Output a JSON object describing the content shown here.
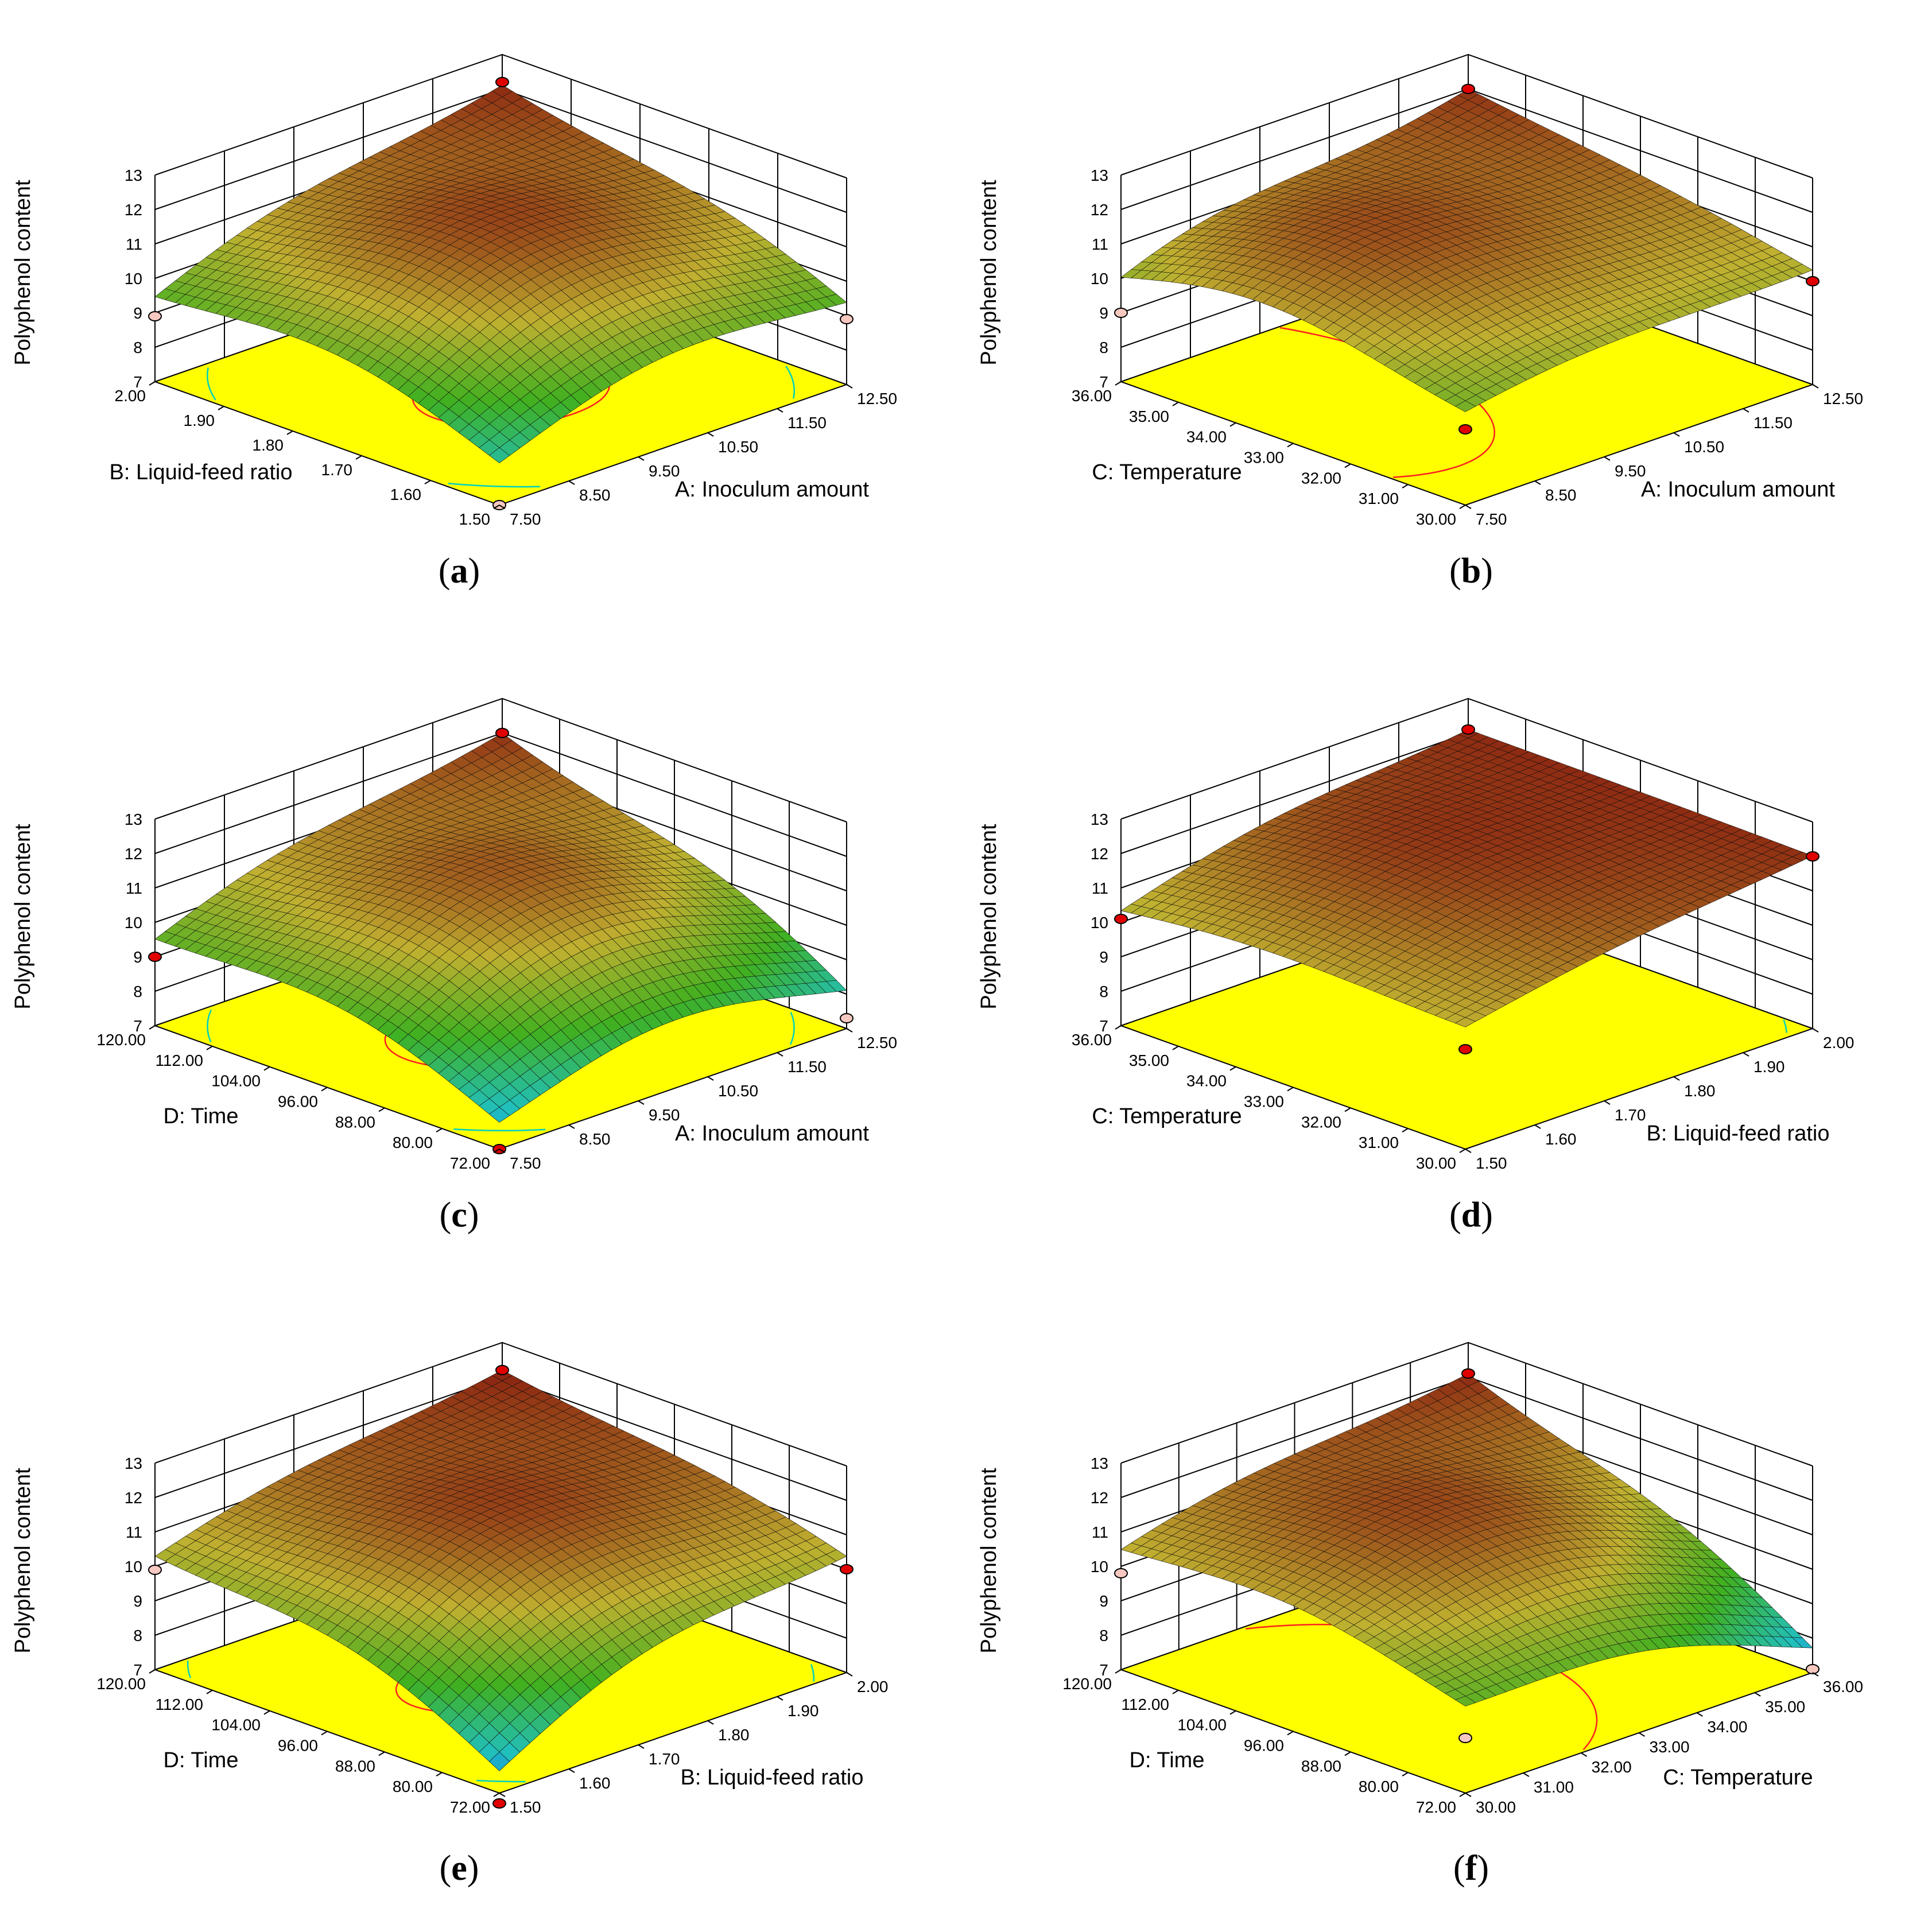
{
  "colors": {
    "floor": "#ffff00",
    "contour_inner": "#ff2020",
    "contour_outer": "#00d0c0",
    "grid": "#000000",
    "point_fill_dark": "#e00000",
    "point_fill_light": "#f6c8c0",
    "surface_low": "#0030ff",
    "surface_mid_low": "#20c0c0",
    "surface_mid": "#40b020",
    "surface_mid_high": "#c0b030",
    "surface_high": "#8a2010"
  },
  "chart_data": [
    {
      "id": "a",
      "caption": "a",
      "type": "surface3d",
      "zlabel": "Polyphenol content",
      "zticks": [
        "7",
        "8",
        "9",
        "10",
        "11",
        "12",
        "13"
      ],
      "zlim": [
        7,
        13
      ],
      "x_axis": {
        "label": "A: Inoculum amount",
        "ticks": [
          "7.50",
          "8.50",
          "9.50",
          "10.50",
          "11.50",
          "12.50"
        ],
        "range": [
          7.5,
          12.5
        ]
      },
      "y_axis": {
        "label": "B: Liquid-feed ratio",
        "ticks": [
          "1.50",
          "1.60",
          "1.70",
          "1.80",
          "1.90",
          "2.00"
        ],
        "range": [
          1.5,
          2.0
        ]
      },
      "surface": {
        "corners": {
          "x0y0": 7.4,
          "x1y0": 8.8,
          "x0y1": 8.9,
          "x1y1": 12.1
        },
        "peak": {
          "u": 0.5,
          "v": 0.5,
          "z": 12.2
        }
      },
      "contours": [
        {
          "u": 0.48,
          "v": 0.45,
          "ru": 0.22,
          "rv": 0.18,
          "kind": "inner"
        },
        {
          "u": 0.5,
          "v": 0.5,
          "ru": 0.58,
          "rv": 0.62,
          "kind": "outer"
        }
      ],
      "design_points": [
        {
          "u": 1,
          "v": 1,
          "z": 12.2,
          "fill": "dark"
        },
        {
          "u": 0,
          "v": 0,
          "z": 7.0,
          "fill": "light"
        },
        {
          "u": 1,
          "v": 0,
          "z": 8.9,
          "fill": "light"
        },
        {
          "u": 0,
          "v": 1,
          "z": 8.9,
          "fill": "light"
        }
      ]
    },
    {
      "id": "b",
      "caption": "b",
      "type": "surface3d",
      "zlabel": "Polyphenol content",
      "zticks": [
        "7",
        "8",
        "9",
        "10",
        "11",
        "12",
        "13"
      ],
      "zlim": [
        7,
        13
      ],
      "x_axis": {
        "label": "A: Inoculum amount",
        "ticks": [
          "7.50",
          "8.50",
          "9.50",
          "10.50",
          "11.50",
          "12.50"
        ],
        "range": [
          7.5,
          12.5
        ]
      },
      "y_axis": {
        "label": "C: Temperature",
        "ticks": [
          "30.00",
          "31.00",
          "32.00",
          "33.00",
          "34.00",
          "35.00",
          "36.00"
        ],
        "range": [
          30,
          36
        ]
      },
      "surface": {
        "corners": {
          "x0y0": 9.2,
          "x1y0": 10.2,
          "x0y1": 9.0,
          "x1y1": 12.0
        },
        "peak": {
          "u": 0.35,
          "v": 0.6,
          "z": 12.0
        }
      },
      "contours": [
        {
          "u": 0.15,
          "v": 0.72,
          "ru": 0.35,
          "rv": 0.55,
          "kind": "inner"
        },
        {
          "u": 0.3,
          "v": 0.6,
          "ru": 0.9,
          "rv": 0.9,
          "kind": "outer"
        }
      ],
      "design_points": [
        {
          "u": 1,
          "v": 1,
          "z": 12.0,
          "fill": "dark"
        },
        {
          "u": 0,
          "v": 0,
          "z": 9.2,
          "fill": "dark"
        },
        {
          "u": 1,
          "v": 0,
          "z": 10.0,
          "fill": "dark"
        },
        {
          "u": 0,
          "v": 1,
          "z": 9.0,
          "fill": "light"
        }
      ]
    },
    {
      "id": "c",
      "caption": "c",
      "type": "surface3d",
      "zlabel": "Polyphenol content",
      "zticks": [
        "7",
        "8",
        "9",
        "10",
        "11",
        "12",
        "13"
      ],
      "zlim": [
        7,
        13
      ],
      "x_axis": {
        "label": "A: Inoculum amount",
        "ticks": [
          "7.50",
          "8.50",
          "9.50",
          "10.50",
          "11.50",
          "12.50"
        ],
        "range": [
          7.5,
          12.5
        ]
      },
      "y_axis": {
        "label": "D: Time",
        "ticks": [
          "72.00",
          "80.00",
          "88.00",
          "96.00",
          "104.00",
          "112.00",
          "120.00"
        ],
        "range": [
          72,
          120
        ]
      },
      "surface": {
        "corners": {
          "x0y0": 6.9,
          "x1y0": 7.3,
          "x0y1": 9.0,
          "x1y1": 12.0
        },
        "peak": {
          "u": 0.5,
          "v": 0.5,
          "z": 12.0
        }
      },
      "contours": [
        {
          "u": 0.45,
          "v": 0.5,
          "ru": 0.22,
          "rv": 0.18,
          "kind": "inner"
        },
        {
          "u": 0.5,
          "v": 0.5,
          "ru": 0.6,
          "rv": 0.6,
          "kind": "outer"
        }
      ],
      "design_points": [
        {
          "u": 1,
          "v": 1,
          "z": 12.0,
          "fill": "dark"
        },
        {
          "u": 0,
          "v": 0,
          "z": 7.0,
          "fill": "dark"
        },
        {
          "u": 1,
          "v": 0,
          "z": 7.3,
          "fill": "light"
        },
        {
          "u": 0,
          "v": 1,
          "z": 9.0,
          "fill": "dark"
        }
      ]
    },
    {
      "id": "d",
      "caption": "d",
      "type": "surface3d",
      "zlabel": "Polyphenol content",
      "zticks": [
        "7",
        "8",
        "9",
        "10",
        "11",
        "12",
        "13"
      ],
      "zlim": [
        7,
        13
      ],
      "x_axis": {
        "label": "B: Liquid-feed ratio",
        "ticks": [
          "1.50",
          "1.60",
          "1.70",
          "1.80",
          "1.90",
          "2.00"
        ],
        "range": [
          1.5,
          2.0
        ]
      },
      "y_axis": {
        "label": "C: Temperature",
        "ticks": [
          "30.00",
          "31.00",
          "32.00",
          "33.00",
          "34.00",
          "35.00",
          "36.00"
        ],
        "range": [
          30,
          36
        ]
      },
      "surface": {
        "corners": {
          "x0y0": 10.4,
          "x1y0": 12.0,
          "x0y1": 10.0,
          "x1y1": 12.1
        },
        "peak": {
          "u": 0.6,
          "v": 0.6,
          "z": 12.1
        }
      },
      "contours": [
        {
          "u": 0.45,
          "v": 0.55,
          "ru": 0.7,
          "rv": 0.75,
          "kind": "outer"
        }
      ],
      "design_points": [
        {
          "u": 1,
          "v": 1,
          "z": 12.1,
          "fill": "dark"
        },
        {
          "u": 0,
          "v": 0,
          "z": 9.9,
          "fill": "dark"
        },
        {
          "u": 1,
          "v": 0,
          "z": 12.0,
          "fill": "dark"
        },
        {
          "u": 0,
          "v": 1,
          "z": 10.1,
          "fill": "dark"
        }
      ]
    },
    {
      "id": "e",
      "caption": "e",
      "type": "surface3d",
      "zlabel": "Polyphenol content",
      "zticks": [
        "7",
        "8",
        "9",
        "10",
        "11",
        "12",
        "13"
      ],
      "zlim": [
        7,
        13
      ],
      "x_axis": {
        "label": "B: Liquid-feed ratio",
        "ticks": [
          "1.50",
          "1.60",
          "1.70",
          "1.80",
          "1.90",
          "2.00"
        ],
        "range": [
          1.5,
          2.0
        ]
      },
      "y_axis": {
        "label": "D: Time",
        "ticks": [
          "72.00",
          "80.00",
          "88.00",
          "96.00",
          "104.00",
          "112.00",
          "120.00"
        ],
        "range": [
          72,
          120
        ]
      },
      "surface": {
        "corners": {
          "x0y0": 6.7,
          "x1y0": 10.0,
          "x0y1": 9.9,
          "x1y1": 12.2
        },
        "peak": {
          "u": 0.5,
          "v": 0.5,
          "z": 12.2
        }
      },
      "contours": [
        {
          "u": 0.45,
          "v": 0.48,
          "ru": 0.22,
          "rv": 0.16,
          "kind": "inner"
        },
        {
          "u": 0.5,
          "v": 0.5,
          "ru": 0.62,
          "rv": 0.66,
          "kind": "outer"
        }
      ],
      "design_points": [
        {
          "u": 1,
          "v": 1,
          "z": 12.2,
          "fill": "dark"
        },
        {
          "u": 0,
          "v": 0,
          "z": 6.7,
          "fill": "dark"
        },
        {
          "u": 1,
          "v": 0,
          "z": 10.0,
          "fill": "dark"
        },
        {
          "u": 0,
          "v": 1,
          "z": 9.9,
          "fill": "light"
        }
      ]
    },
    {
      "id": "f",
      "caption": "f",
      "type": "surface3d",
      "zlabel": "Polyphenol content",
      "zticks": [
        "7",
        "8",
        "9",
        "10",
        "11",
        "12",
        "13"
      ],
      "zlim": [
        7,
        13
      ],
      "x_axis": {
        "label": "C: Temperature",
        "ticks": [
          "30.00",
          "31.00",
          "32.00",
          "33.00",
          "34.00",
          "35.00",
          "36.00"
        ],
        "range": [
          30,
          36
        ]
      },
      "y_axis": {
        "label": "D: Time",
        "ticks": [
          "72.00",
          "80.00",
          "88.00",
          "96.00",
          "104.00",
          "112.00",
          "120.00"
        ],
        "range": [
          72,
          120
        ]
      },
      "surface": {
        "corners": {
          "x0y0": 9.0,
          "x1y0": 7.1,
          "x0y1": 10.0,
          "x1y1": 12.1
        },
        "peak": {
          "u": 0.45,
          "v": 0.55,
          "z": 12.1
        }
      },
      "contours": [
        {
          "u": 0.1,
          "v": 0.5,
          "ru": 0.55,
          "rv": 0.55,
          "kind": "inner"
        },
        {
          "u": 0.15,
          "v": 0.5,
          "ru": 1.0,
          "rv": 0.9,
          "kind": "outer"
        }
      ],
      "design_points": [
        {
          "u": 1,
          "v": 1,
          "z": 12.1,
          "fill": "dark"
        },
        {
          "u": 0,
          "v": 0,
          "z": 8.6,
          "fill": "light"
        },
        {
          "u": 1,
          "v": 0,
          "z": 7.1,
          "fill": "light"
        },
        {
          "u": 0,
          "v": 1,
          "z": 9.8,
          "fill": "light"
        }
      ]
    }
  ]
}
